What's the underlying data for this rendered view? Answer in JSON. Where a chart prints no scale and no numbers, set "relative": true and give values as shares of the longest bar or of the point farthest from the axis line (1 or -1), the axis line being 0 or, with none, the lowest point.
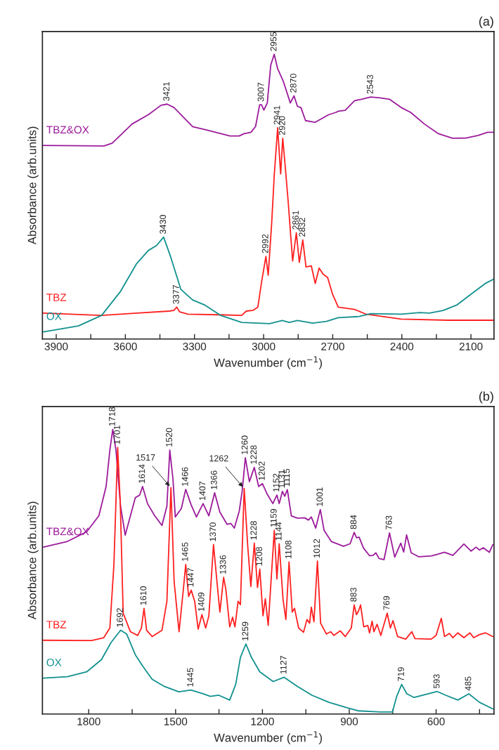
{
  "chart_data": [
    {
      "type": "line",
      "title": "(a)",
      "xlabel": "Wavenumber (cm$^{−1}$)",
      "ylabel": "Absorbance (arb.units)",
      "relative": true,
      "tick_labels": "x",
      "xlim": [
        3960,
        2000
      ],
      "xticks": [
        3900,
        {
          "value": 3750,
          "label": null
        },
        3600,
        {
          "value": 3450,
          "label": null
        },
        3300,
        {
          "value": 3150,
          "label": null
        },
        3000,
        {
          "value": 2850,
          "label": null
        },
        2700,
        {
          "value": 2550,
          "label": null
        },
        2400,
        {
          "value": 2250,
          "label": null
        },
        2100
      ],
      "series": [
        {
          "name": "TBZ&OX",
          "color": "#9c1b9b",
          "x": [
            3956,
            3693,
            3657,
            3571,
            3500,
            3445,
            3419,
            3389,
            3308,
            3247,
            3146,
            3106,
            3085,
            3055,
            3035,
            3017,
            3009,
            2999,
            2984,
            2969,
            2954,
            2939,
            2914,
            2884,
            2868,
            2853,
            2838,
            2818,
            2777,
            2717,
            2686,
            2676,
            2646,
            2605,
            2575,
            2535,
            2494,
            2454,
            2403,
            2362,
            2302,
            2241,
            2180,
            2119,
            2069,
            2028,
            2000
          ],
          "values": [
            0.68,
            0.678,
            0.688,
            0.755,
            0.788,
            0.821,
            0.825,
            0.813,
            0.746,
            0.734,
            0.713,
            0.713,
            0.721,
            0.726,
            0.746,
            0.823,
            0.823,
            0.804,
            0.829,
            0.962,
            1.0,
            0.949,
            0.904,
            0.829,
            0.854,
            0.817,
            0.813,
            0.767,
            0.761,
            0.788,
            0.796,
            0.8,
            0.803,
            0.837,
            0.842,
            0.85,
            0.847,
            0.842,
            0.813,
            0.796,
            0.755,
            0.721,
            0.705,
            0.706,
            0.715,
            0.726,
            0.726
          ]
        },
        {
          "name": "TBZ",
          "color": "#ff2020",
          "x": [
            3956,
            3703,
            3551,
            3409,
            3389,
            3377,
            3364,
            3328,
            3197,
            3095,
            3075,
            3045,
            3025,
            3009,
            2990,
            2980,
            2965,
            2954,
            2939,
            2926,
            2917,
            2907,
            2894,
            2874,
            2858,
            2845,
            2830,
            2816,
            2793,
            2776,
            2759,
            2742,
            2722,
            2701,
            2676,
            2605,
            2555,
            2403,
            2201,
            2000
          ],
          "values": [
            0.091,
            0.083,
            0.091,
            0.098,
            0.101,
            0.112,
            0.095,
            0.087,
            0.085,
            0.083,
            0.098,
            0.101,
            0.112,
            0.199,
            0.29,
            0.224,
            0.406,
            0.572,
            0.742,
            0.58,
            0.705,
            0.614,
            0.489,
            0.274,
            0.373,
            0.269,
            0.348,
            0.253,
            0.257,
            0.195,
            0.249,
            0.228,
            0.216,
            0.158,
            0.112,
            0.104,
            0.087,
            0.07,
            0.066,
            0.066
          ]
        },
        {
          "name": "OX",
          "color": "#12918f",
          "x": [
            3956,
            3804,
            3703,
            3622,
            3551,
            3500,
            3465,
            3434,
            3404,
            3359,
            3308,
            3257,
            3187,
            3095,
            2974,
            2919,
            2889,
            2853,
            2787,
            2727,
            2676,
            2585,
            2535,
            2403,
            2322,
            2281,
            2221,
            2160,
            2099,
            2038,
            2000
          ],
          "values": [
            0.025,
            0.046,
            0.083,
            0.166,
            0.265,
            0.311,
            0.328,
            0.358,
            0.29,
            0.174,
            0.137,
            0.12,
            0.083,
            0.058,
            0.054,
            0.065,
            0.058,
            0.065,
            0.056,
            0.062,
            0.075,
            0.079,
            0.089,
            0.087,
            0.093,
            0.091,
            0.1,
            0.12,
            0.158,
            0.195,
            0.211
          ]
        }
      ],
      "annotations": [
        {
          "text": "3421",
          "x": 3419,
          "y": 0.825
        },
        {
          "text": "3007",
          "x": 3009,
          "y": 0.823
        },
        {
          "text": "2955",
          "x": 2954,
          "y": 1.0
        },
        {
          "text": "2870",
          "x": 2868,
          "y": 0.854
        },
        {
          "text": "2543",
          "x": 2535,
          "y": 0.85
        },
        {
          "text": "2941",
          "x": 2939,
          "y": 0.742
        },
        {
          "text": "2920",
          "x": 2917,
          "y": 0.705
        },
        {
          "text": "2992",
          "x": 2990,
          "y": 0.29
        },
        {
          "text": "2861",
          "x": 2858,
          "y": 0.373
        },
        {
          "text": "2832",
          "x": 2830,
          "y": 0.348
        },
        {
          "text": "3377",
          "x": 3377,
          "y": 0.112
        },
        {
          "text": "3430",
          "x": 3434,
          "y": 0.358
        }
      ]
    },
    {
      "type": "line",
      "title": "(b)",
      "xlabel": "Wavenumber (cm$^{−1}$)",
      "ylabel": "Absorbance (arb.units)",
      "relative": true,
      "tick_labels": "x",
      "xlim": [
        1960,
        400
      ],
      "xticks": [
        1800,
        {
          "value": 1650,
          "label": null
        },
        1500,
        {
          "value": 1350,
          "label": null
        },
        1200,
        {
          "value": 1050,
          "label": null
        },
        900,
        {
          "value": 750,
          "label": null
        },
        600,
        {
          "value": 450,
          "label": null
        }
      ],
      "series": [
        {
          "name": "TBZ&OX",
          "color": "#9c1b9b",
          "x": [
            1957,
            1874,
            1807,
            1765,
            1740,
            1727,
            1717,
            1706,
            1690,
            1674,
            1656,
            1639,
            1624,
            1614,
            1597,
            1572,
            1547,
            1530,
            1520,
            1509,
            1501,
            1480,
            1465,
            1446,
            1428,
            1405,
            1385,
            1365,
            1347,
            1322,
            1309,
            1297,
            1280,
            1270,
            1259,
            1245,
            1228,
            1213,
            1200,
            1184,
            1164,
            1150,
            1142,
            1131,
            1123,
            1114,
            1100,
            1079,
            1054,
            1041,
            1031,
            1016,
            1000,
            987,
            962,
            920,
            897,
            883,
            875,
            866,
            851,
            830,
            818,
            808,
            797,
            780,
            761,
            743,
            722,
            712,
            702,
            686,
            659,
            617,
            596,
            571,
            542,
            504,
            479,
            462,
            450,
            437,
            416,
            404
          ],
          "values": [
            0.586,
            0.606,
            0.64,
            0.696,
            0.799,
            0.927,
            1.0,
            0.927,
            0.73,
            0.628,
            0.696,
            0.76,
            0.769,
            0.799,
            0.739,
            0.696,
            0.662,
            0.73,
            0.927,
            0.825,
            0.692,
            0.722,
            0.789,
            0.734,
            0.692,
            0.739,
            0.696,
            0.777,
            0.709,
            0.666,
            0.669,
            0.653,
            0.713,
            0.782,
            0.9,
            0.816,
            0.866,
            0.799,
            0.809,
            0.773,
            0.739,
            0.769,
            0.739,
            0.782,
            0.765,
            0.788,
            0.696,
            0.688,
            0.689,
            0.681,
            0.692,
            0.653,
            0.718,
            0.645,
            0.606,
            0.589,
            0.598,
            0.638,
            0.619,
            0.621,
            0.583,
            0.556,
            0.557,
            0.566,
            0.546,
            0.542,
            0.636,
            0.551,
            0.6,
            0.569,
            0.629,
            0.566,
            0.552,
            0.555,
            0.561,
            0.568,
            0.557,
            0.597,
            0.572,
            0.586,
            0.576,
            0.584,
            0.568,
            0.595
          ]
        },
        {
          "name": "TBZ",
          "color": "#ff2020",
          "x": [
            1957,
            1790,
            1748,
            1727,
            1713,
            1700,
            1691,
            1681,
            1656,
            1631,
            1618,
            1609,
            1600,
            1581,
            1547,
            1530,
            1516,
            1505,
            1488,
            1473,
            1465,
            1455,
            1446,
            1434,
            1422,
            1409,
            1396,
            1385,
            1369,
            1359,
            1347,
            1334,
            1326,
            1313,
            1303,
            1295,
            1284,
            1276,
            1263,
            1251,
            1240,
            1228,
            1217,
            1209,
            1198,
            1190,
            1180,
            1159,
            1150,
            1142,
            1129,
            1119,
            1108,
            1097,
            1089,
            1075,
            1058,
            1046,
            1037,
            1031,
            1022,
            1010,
            999,
            979,
            964,
            953,
            931,
            914,
            893,
            883,
            875,
            868,
            861,
            850,
            836,
            830,
            821,
            815,
            804,
            791,
            769,
            758,
            749,
            733,
            705,
            684,
            673,
            617,
            600,
            582,
            571,
            554,
            542,
            525,
            504,
            483,
            470,
            450,
            429,
            404
          ],
          "values": [
            0.259,
            0.258,
            0.268,
            0.302,
            0.525,
            0.936,
            0.739,
            0.354,
            0.289,
            0.276,
            0.302,
            0.371,
            0.294,
            0.272,
            0.294,
            0.396,
            0.795,
            0.465,
            0.289,
            0.439,
            0.525,
            0.413,
            0.435,
            0.396,
            0.298,
            0.349,
            0.302,
            0.345,
            0.595,
            0.486,
            0.358,
            0.48,
            0.435,
            0.306,
            0.34,
            0.306,
            0.396,
            0.384,
            0.792,
            0.593,
            0.448,
            0.6,
            0.444,
            0.509,
            0.345,
            0.405,
            0.311,
            0.645,
            0.474,
            0.598,
            0.405,
            0.332,
            0.534,
            0.358,
            0.371,
            0.302,
            0.287,
            0.332,
            0.319,
            0.375,
            0.324,
            0.537,
            0.319,
            0.281,
            0.289,
            0.276,
            0.292,
            0.272,
            0.302,
            0.383,
            0.349,
            0.362,
            0.383,
            0.306,
            0.311,
            0.285,
            0.326,
            0.289,
            0.315,
            0.276,
            0.354,
            0.302,
            0.328,
            0.272,
            0.263,
            0.289,
            0.265,
            0.263,
            0.276,
            0.336,
            0.272,
            0.283,
            0.268,
            0.285,
            0.268,
            0.285,
            0.268,
            0.279,
            0.285,
            0.272
          ]
        },
        {
          "name": "OX",
          "color": "#12918f",
          "x": [
            1957,
            1874,
            1807,
            1756,
            1723,
            1690,
            1669,
            1639,
            1614,
            1581,
            1539,
            1489,
            1447,
            1405,
            1380,
            1351,
            1313,
            1292,
            1276,
            1257,
            1238,
            1209,
            1163,
            1125,
            1079,
            1029,
            970,
            905,
            868,
            793,
            751,
            736,
            719,
            701,
            676,
            596,
            567,
            525,
            487,
            450,
            404
          ],
          "values": [
            0.126,
            0.131,
            0.148,
            0.191,
            0.251,
            0.294,
            0.281,
            0.208,
            0.169,
            0.122,
            0.097,
            0.078,
            0.084,
            0.071,
            0.062,
            0.066,
            0.049,
            0.105,
            0.199,
            0.246,
            0.199,
            0.148,
            0.114,
            0.129,
            0.097,
            0.066,
            0.041,
            0.021,
            0.011,
            0.007,
            0.007,
            0.062,
            0.104,
            0.071,
            0.058,
            0.079,
            0.066,
            0.049,
            0.071,
            0.041,
            0.018
          ]
        }
      ],
      "annotations": [
        {
          "text": "1718",
          "x": 1717,
          "y": 1.0
        },
        {
          "text": "1614",
          "x": 1614,
          "y": 0.799
        },
        {
          "text": "1520",
          "x": 1520,
          "y": 0.927
        },
        {
          "text": "1466",
          "x": 1465,
          "y": 0.789
        },
        {
          "text": "1407",
          "x": 1405,
          "y": 0.739
        },
        {
          "text": "1366",
          "x": 1365,
          "y": 0.777
        },
        {
          "text": "1260",
          "x": 1259,
          "y": 0.9
        },
        {
          "text": "1228",
          "x": 1228,
          "y": 0.866
        },
        {
          "text": "1202",
          "x": 1200,
          "y": 0.809
        },
        {
          "text": "1152",
          "x": 1150,
          "y": 0.769
        },
        {
          "text": "1131",
          "x": 1131,
          "y": 0.782
        },
        {
          "text": "1115",
          "x": 1114,
          "y": 0.788
        },
        {
          "text": "1001",
          "x": 1000,
          "y": 0.718
        },
        {
          "text": "884",
          "x": 883,
          "y": 0.638
        },
        {
          "text": "763",
          "x": 761,
          "y": 0.636
        },
        {
          "text": "1701",
          "x": 1700,
          "y": 0.936
        },
        {
          "text": "1517",
          "x": 1516,
          "y": 0.795
        },
        {
          "text": "1610",
          "x": 1609,
          "y": 0.371
        },
        {
          "text": "1465",
          "x": 1465,
          "y": 0.525
        },
        {
          "text": "1447",
          "x": 1446,
          "y": 0.435
        },
        {
          "text": "1409",
          "x": 1409,
          "y": 0.349
        },
        {
          "text": "1370",
          "x": 1369,
          "y": 0.595
        },
        {
          "text": "1336",
          "x": 1334,
          "y": 0.48
        },
        {
          "text": "1262",
          "x": 1263,
          "y": 0.792
        },
        {
          "text": "1228",
          "x": 1228,
          "y": 0.6
        },
        {
          "text": "1208",
          "x": 1209,
          "y": 0.509
        },
        {
          "text": "1159",
          "x": 1159,
          "y": 0.645
        },
        {
          "text": "1144",
          "x": 1142,
          "y": 0.598
        },
        {
          "text": "1108",
          "x": 1108,
          "y": 0.534
        },
        {
          "text": "1012",
          "x": 1010,
          "y": 0.537
        },
        {
          "text": "883",
          "x": 883,
          "y": 0.383
        },
        {
          "text": "769",
          "x": 769,
          "y": 0.354
        },
        {
          "text": "1692",
          "x": 1690,
          "y": 0.294
        },
        {
          "text": "1445",
          "x": 1447,
          "y": 0.084
        },
        {
          "text": "1259",
          "x": 1257,
          "y": 0.246
        },
        {
          "text": "1127",
          "x": 1125,
          "y": 0.129
        },
        {
          "text": "719",
          "x": 719,
          "y": 0.104
        },
        {
          "text": "593",
          "x": 596,
          "y": 0.079
        },
        {
          "text": "485",
          "x": 487,
          "y": 0.071
        }
      ]
    }
  ]
}
